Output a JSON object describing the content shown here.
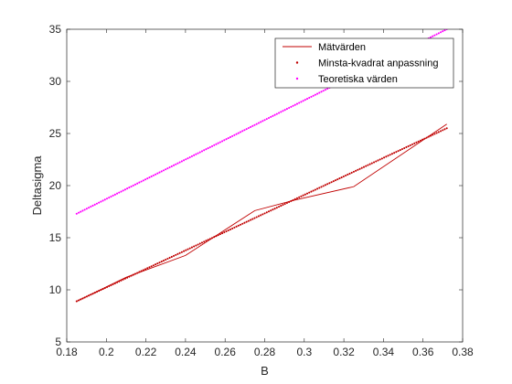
{
  "chart_data": {
    "type": "line",
    "title": "",
    "xlabel": "B",
    "ylabel": "Deltasigma",
    "xlim": [
      0.18,
      0.38
    ],
    "ylim": [
      5,
      35
    ],
    "xticks": [
      0.18,
      0.2,
      0.22,
      0.24,
      0.26,
      0.28,
      0.3,
      0.32,
      0.34,
      0.36,
      0.38
    ],
    "yticks": [
      5,
      10,
      15,
      20,
      25,
      30,
      35
    ],
    "xtick_labels": [
      "0.18",
      "0.2",
      "0.22",
      "0.24",
      "0.26",
      "0.28",
      "0.3",
      "0.32",
      "0.34",
      "0.36",
      "0.38"
    ],
    "ytick_labels": [
      "5",
      "10",
      "15",
      "20",
      "25",
      "30",
      "35"
    ],
    "grid": false,
    "legend_position": "top-right",
    "series": [
      {
        "name": "Mätvärden",
        "style": "solid-line",
        "color": "#c00000",
        "x": [
          0.185,
          0.21,
          0.24,
          0.275,
          0.295,
          0.325,
          0.372
        ],
        "y": [
          8.9,
          11.2,
          13.3,
          17.6,
          18.6,
          19.9,
          25.9
        ]
      },
      {
        "name": "Minsta-kvadrat anpassning",
        "style": "dotted-line",
        "color": "#c00000",
        "x": [
          0.185,
          0.372
        ],
        "y": [
          8.9,
          25.5
        ]
      },
      {
        "name": "Teoretiska värden",
        "style": "dotted-line",
        "color": "#ff00ff",
        "x": [
          0.185,
          0.372
        ],
        "y": [
          17.3,
          35.0
        ]
      }
    ]
  }
}
